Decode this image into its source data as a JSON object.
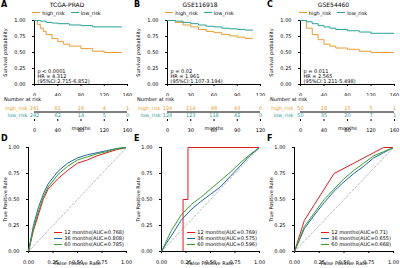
{
  "chart_data": [
    {
      "type": "survival",
      "panel": "A",
      "title": "TCGA-PRAD",
      "xlabel": "months",
      "ylabel": "Survival probability",
      "xlim": [
        0,
        160
      ],
      "xticks": [
        0,
        40,
        80,
        120,
        160
      ],
      "ylim": [
        0,
        1
      ],
      "yticks": [
        {
          "value": 0,
          "label": "0.00"
        },
        {
          "value": 0.25,
          "label": "0.25"
        },
        {
          "value": 0.5,
          "label": "0.50"
        },
        {
          "value": 0.75,
          "label": "0.75"
        },
        {
          "value": 1,
          "label": "1.00"
        }
      ],
      "legend": "top",
      "line_style": "step",
      "series": [
        {
          "name": "high_risk",
          "color": "#E89B2E",
          "x": [
            0,
            5,
            10,
            15,
            20,
            30,
            40,
            50,
            60,
            80,
            100,
            120,
            150
          ],
          "values": [
            1,
            0.94,
            0.88,
            0.83,
            0.78,
            0.72,
            0.67,
            0.63,
            0.6,
            0.56,
            0.52,
            0.5,
            0.5
          ]
        },
        {
          "name": "low_risk",
          "color": "#2AA198",
          "x": [
            0,
            10,
            20,
            30,
            40,
            60,
            80,
            100,
            120,
            150
          ],
          "values": [
            1,
            0.99,
            0.97,
            0.96,
            0.95,
            0.93,
            0.92,
            0.9,
            0.9,
            0.9
          ]
        }
      ],
      "annotations": [
        "p < 0.0001",
        "HR = 4.312",
        "(95%CI:2.715-6.852)"
      ],
      "risk_table": {
        "title": "Number at risk",
        "x": [
          0,
          40,
          80,
          120,
          160
        ],
        "rows": [
          {
            "name": "high_risk",
            "values": [
              241,
              81,
              16,
              4,
              1
            ]
          },
          {
            "name": "low_risk",
            "values": [
              242,
              62,
              14,
              5,
              0
            ]
          }
        ]
      }
    },
    {
      "type": "survival",
      "panel": "B",
      "title": "GSE116918",
      "xlabel": "months",
      "ylabel": "Survival probability",
      "xlim": [
        0,
        120
      ],
      "xticks": [
        0,
        30,
        60,
        90,
        120
      ],
      "ylim": [
        0,
        1
      ],
      "yticks": [
        {
          "value": 0,
          "label": "0.00"
        },
        {
          "value": 0.25,
          "label": "0.25"
        },
        {
          "value": 0.5,
          "label": "0.50"
        },
        {
          "value": 0.75,
          "label": "0.75"
        },
        {
          "value": 1,
          "label": "1.00"
        }
      ],
      "legend": "top",
      "line_style": "step",
      "series": [
        {
          "name": "high_risk",
          "color": "#E89B2E",
          "x": [
            0,
            10,
            20,
            30,
            40,
            50,
            60,
            70,
            80,
            90,
            100,
            110
          ],
          "values": [
            1,
            0.97,
            0.93,
            0.9,
            0.86,
            0.83,
            0.81,
            0.78,
            0.76,
            0.74,
            0.72,
            0.72
          ]
        },
        {
          "name": "low_risk",
          "color": "#2AA198",
          "x": [
            0,
            10,
            20,
            30,
            40,
            50,
            60,
            70,
            80,
            90,
            100,
            110
          ],
          "values": [
            1,
            0.99,
            0.97,
            0.95,
            0.93,
            0.91,
            0.9,
            0.88,
            0.87,
            0.86,
            0.85,
            0.85
          ]
        }
      ],
      "annotations": [
        "p = 0.02",
        "HR = 1.961",
        "(95%CI:1.107-3.194)"
      ],
      "risk_table": {
        "title": "Number at risk",
        "x": [
          0,
          30,
          60,
          90,
          120
        ],
        "rows": [
          {
            "name": "high_risk",
            "values": [
              124,
              114,
              98,
              43,
              0
            ]
          },
          {
            "name": "low_risk",
            "values": [
              124,
              123,
              118,
              42,
              0
            ]
          }
        ]
      }
    },
    {
      "type": "survival",
      "panel": "C",
      "title": "GSE54460",
      "xlabel": "months",
      "ylabel": "Survival probability",
      "xlim": [
        0,
        160
      ],
      "xticks": [
        0,
        40,
        80,
        120,
        160
      ],
      "ylim": [
        0,
        1
      ],
      "yticks": [
        {
          "value": 0,
          "label": "0.00"
        },
        {
          "value": 0.25,
          "label": "0.25"
        },
        {
          "value": 0.5,
          "label": "0.50"
        },
        {
          "value": 0.75,
          "label": "0.75"
        },
        {
          "value": 1,
          "label": "1.00"
        }
      ],
      "legend": "top",
      "line_style": "step",
      "series": [
        {
          "name": "high_risk",
          "color": "#E89B2E",
          "x": [
            0,
            10,
            20,
            30,
            40,
            50,
            60,
            80,
            100,
            120,
            140,
            160
          ],
          "values": [
            1,
            0.88,
            0.78,
            0.7,
            0.63,
            0.6,
            0.57,
            0.55,
            0.52,
            0.5,
            0.5,
            0.5
          ]
        },
        {
          "name": "low_risk",
          "color": "#2AA198",
          "x": [
            0,
            10,
            20,
            30,
            40,
            50,
            60,
            80,
            100,
            120,
            140,
            160
          ],
          "values": [
            1,
            0.98,
            0.95,
            0.92,
            0.9,
            0.88,
            0.86,
            0.84,
            0.82,
            0.8,
            0.8,
            0.8
          ]
        }
      ],
      "annotations": [
        "p = 0.011",
        "HR = 2.565",
        "(95%CI:1.211-5.498)"
      ],
      "risk_table": {
        "title": "Number at risk",
        "x": [
          0,
          40,
          80,
          120,
          160
        ],
        "rows": [
          {
            "name": "high_risk",
            "values": [
              50,
              28,
              15,
              5,
              1
            ]
          },
          {
            "name": "low_risk",
            "values": [
              50,
              35,
              20,
              7,
              1
            ]
          }
        ]
      }
    },
    {
      "type": "roc",
      "panel": "D",
      "xlabel": "False Positive Rate",
      "ylabel": "True Positive Rate",
      "xlim": [
        0,
        1
      ],
      "xticks": [
        {
          "value": 0,
          "label": "0.00"
        },
        {
          "value": 0.25,
          "label": "0.25"
        },
        {
          "value": 0.5,
          "label": "0.50"
        },
        {
          "value": 0.75,
          "label": "0.75"
        },
        {
          "value": 1,
          "label": "1.00"
        }
      ],
      "ylim": [
        0,
        1
      ],
      "yticks": [
        {
          "value": 0,
          "label": "0.00"
        },
        {
          "value": 0.25,
          "label": "0.25"
        },
        {
          "value": 0.5,
          "label": "0.50"
        },
        {
          "value": 0.75,
          "label": "0.75"
        },
        {
          "value": 1,
          "label": "1.00"
        }
      ],
      "legend": "bottom-right",
      "line_style": "solid",
      "series": [
        {
          "name": "12 months(AUC=0.768)",
          "color": "#E31A1C",
          "x": [
            0,
            0.05,
            0.1,
            0.15,
            0.2,
            0.3,
            0.4,
            0.5,
            0.6,
            0.7,
            0.8,
            0.9,
            1
          ],
          "values": [
            0,
            0.2,
            0.35,
            0.5,
            0.6,
            0.7,
            0.78,
            0.85,
            0.88,
            0.92,
            0.95,
            0.98,
            1
          ]
        },
        {
          "name": "36 months(AUC=0.808)",
          "color": "#2166AC",
          "x": [
            0,
            0.05,
            0.1,
            0.15,
            0.2,
            0.3,
            0.4,
            0.5,
            0.6,
            0.7,
            0.8,
            0.9,
            1
          ],
          "values": [
            0,
            0.25,
            0.42,
            0.55,
            0.65,
            0.77,
            0.85,
            0.9,
            0.93,
            0.95,
            0.97,
            0.99,
            1
          ]
        },
        {
          "name": "60 months(AUC=0.785)",
          "color": "#33A02C",
          "x": [
            0,
            0.05,
            0.1,
            0.15,
            0.2,
            0.3,
            0.4,
            0.5,
            0.6,
            0.7,
            0.8,
            0.9,
            1
          ],
          "values": [
            0,
            0.22,
            0.38,
            0.52,
            0.62,
            0.74,
            0.82,
            0.88,
            0.91,
            0.94,
            0.96,
            0.99,
            1
          ]
        }
      ]
    },
    {
      "type": "roc",
      "panel": "E",
      "xlabel": "False Positive Rate",
      "ylabel": "True Positive Rate",
      "xlim": [
        0,
        1
      ],
      "xticks": [
        {
          "value": 0,
          "label": "0.00"
        },
        {
          "value": 0.25,
          "label": "0.25"
        },
        {
          "value": 0.5,
          "label": "0.50"
        },
        {
          "value": 0.75,
          "label": "0.75"
        },
        {
          "value": 1,
          "label": "1.00"
        }
      ],
      "ylim": [
        0,
        1
      ],
      "yticks": [
        {
          "value": 0,
          "label": "0.00"
        },
        {
          "value": 0.25,
          "label": "0.25"
        },
        {
          "value": 0.5,
          "label": "0.50"
        },
        {
          "value": 0.75,
          "label": "0.75"
        },
        {
          "value": 1,
          "label": "1.00"
        }
      ],
      "legend": "bottom-right",
      "line_style": "solid",
      "series": [
        {
          "name": "12 months(AUC=0.769)",
          "color": "#E31A1C",
          "x": [
            0,
            0.22,
            0.22,
            0.27,
            0.27,
            1
          ],
          "values": [
            0,
            0,
            0.5,
            0.5,
            1,
            1
          ]
        },
        {
          "name": "36 months(AUC=0.575)",
          "color": "#2166AC",
          "x": [
            0,
            0.05,
            0.1,
            0.2,
            0.3,
            0.4,
            0.5,
            0.6,
            0.7,
            0.8,
            0.9,
            1
          ],
          "values": [
            0,
            0.08,
            0.15,
            0.3,
            0.4,
            0.48,
            0.55,
            0.62,
            0.72,
            0.82,
            0.92,
            1
          ]
        },
        {
          "name": "60 months(AUC=0.596)",
          "color": "#33A02C",
          "x": [
            0,
            0.05,
            0.1,
            0.2,
            0.3,
            0.4,
            0.5,
            0.6,
            0.7,
            0.8,
            0.9,
            1
          ],
          "values": [
            0,
            0.1,
            0.2,
            0.35,
            0.45,
            0.52,
            0.6,
            0.68,
            0.76,
            0.85,
            0.93,
            1
          ]
        }
      ]
    },
    {
      "type": "roc",
      "panel": "F",
      "xlabel": "False Positive Rate",
      "ylabel": "True Positive Rate",
      "xlim": [
        0,
        1
      ],
      "xticks": [
        {
          "value": 0,
          "label": "0.00"
        },
        {
          "value": 0.25,
          "label": "0.25"
        },
        {
          "value": 0.5,
          "label": "0.50"
        },
        {
          "value": 0.75,
          "label": "0.75"
        },
        {
          "value": 1,
          "label": "1.00"
        }
      ],
      "ylim": [
        0,
        1
      ],
      "yticks": [
        {
          "value": 0,
          "label": "0.00"
        },
        {
          "value": 0.25,
          "label": "0.25"
        },
        {
          "value": 0.5,
          "label": "0.50"
        },
        {
          "value": 0.75,
          "label": "0.75"
        },
        {
          "value": 1,
          "label": "1.00"
        }
      ],
      "legend": "bottom-right",
      "line_style": "solid",
      "series": [
        {
          "name": "12 months(AUC=0.71)",
          "color": "#E31A1C",
          "x": [
            0,
            0.1,
            0.2,
            0.3,
            0.4,
            0.5,
            0.6,
            0.7,
            0.8,
            0.9,
            1
          ],
          "values": [
            0,
            0.3,
            0.45,
            0.6,
            0.75,
            0.8,
            0.85,
            0.9,
            0.95,
            1,
            1
          ]
        },
        {
          "name": "36 months(AUC=0.655)",
          "color": "#2166AC",
          "x": [
            0,
            0.1,
            0.2,
            0.3,
            0.4,
            0.5,
            0.6,
            0.7,
            0.8,
            0.9,
            1
          ],
          "values": [
            0,
            0.22,
            0.35,
            0.47,
            0.58,
            0.67,
            0.75,
            0.82,
            0.9,
            0.95,
            1
          ]
        },
        {
          "name": "60 months(AUC=0.668)",
          "color": "#33A02C",
          "x": [
            0,
            0.1,
            0.2,
            0.3,
            0.4,
            0.5,
            0.6,
            0.7,
            0.8,
            0.9,
            1
          ],
          "values": [
            0,
            0.24,
            0.37,
            0.5,
            0.6,
            0.7,
            0.78,
            0.85,
            0.92,
            0.96,
            1
          ]
        }
      ]
    }
  ]
}
